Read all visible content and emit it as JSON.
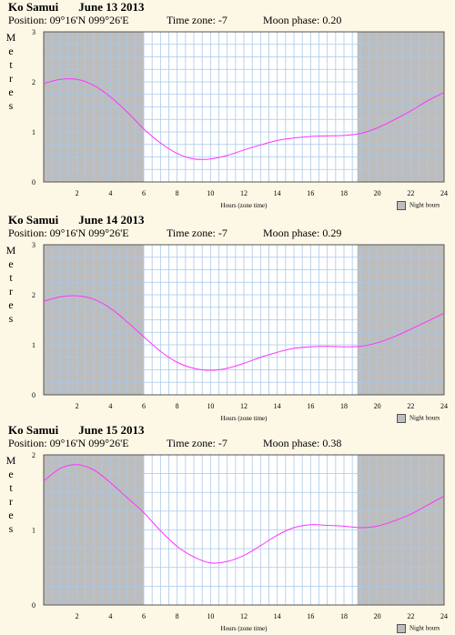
{
  "panels": [
    {
      "location": "Ko Samui",
      "date": "June 13 2013",
      "position": "Position: 09°16'N 099°26'E",
      "timezone": "Time zone: -7",
      "moon_phase": "Moon phase: 0.20",
      "ylabel_letters": [
        "M",
        "e",
        "t",
        "r",
        "e",
        "s"
      ],
      "xlabel": "Hours (zone time)",
      "legend": "Night hours"
    },
    {
      "location": "Ko Samui",
      "date": "June 14 2013",
      "position": "Position: 09°16'N 099°26'E",
      "timezone": "Time zone: -7",
      "moon_phase": "Moon phase: 0.29",
      "ylabel_letters": [
        "M",
        "e",
        "t",
        "r",
        "e",
        "s"
      ],
      "xlabel": "Hours (zone time)",
      "legend": "Night hours"
    },
    {
      "location": "Ko Samui",
      "date": "June 15 2013",
      "position": "Position: 09°16'N 099°26'E",
      "timezone": "Time zone: -7",
      "moon_phase": "Moon phase: 0.38",
      "ylabel_letters": [
        "M",
        "e",
        "t",
        "r",
        "e",
        "s"
      ],
      "xlabel": "Hours (zone time)",
      "legend": "Night hours"
    }
  ],
  "chart_data": [
    {
      "type": "line",
      "title": "Ko Samui June 13 2013",
      "xlabel": "Hours (zone time)",
      "ylabel": "Metres",
      "xlim": [
        0,
        24
      ],
      "ylim": [
        0,
        3
      ],
      "xticks": [
        2,
        4,
        6,
        8,
        10,
        12,
        14,
        16,
        18,
        20,
        22,
        24
      ],
      "yticks": [
        0,
        1,
        2,
        3
      ],
      "night_shading": [
        [
          0,
          6.0
        ],
        [
          18.8,
          24
        ]
      ],
      "series": [
        {
          "color": "#ff33ff",
          "x": [
            0,
            1,
            2,
            3,
            4,
            5,
            6,
            7,
            8,
            9,
            10,
            11,
            12,
            13,
            14,
            15,
            16,
            17,
            18,
            19,
            20,
            21,
            22,
            23,
            24
          ],
          "y": [
            1.97,
            2.05,
            2.05,
            1.93,
            1.7,
            1.4,
            1.06,
            0.78,
            0.57,
            0.46,
            0.46,
            0.53,
            0.64,
            0.74,
            0.83,
            0.88,
            0.91,
            0.92,
            0.93,
            0.97,
            1.08,
            1.24,
            1.42,
            1.62,
            1.79
          ]
        }
      ]
    },
    {
      "type": "line",
      "title": "Ko Samui June 14 2013",
      "xlabel": "Hours (zone time)",
      "ylabel": "Metres",
      "xlim": [
        0,
        24
      ],
      "ylim": [
        0,
        3
      ],
      "xticks": [
        2,
        4,
        6,
        8,
        10,
        12,
        14,
        16,
        18,
        20,
        22,
        24
      ],
      "yticks": [
        0,
        1,
        2,
        3
      ],
      "night_shading": [
        [
          0,
          6.0
        ],
        [
          18.8,
          24
        ]
      ],
      "series": [
        {
          "color": "#ff33ff",
          "x": [
            0,
            1,
            2,
            3,
            4,
            5,
            6,
            7,
            8,
            9,
            10,
            11,
            12,
            13,
            14,
            15,
            16,
            17,
            18,
            19,
            20,
            21,
            22,
            23,
            24
          ],
          "y": [
            1.87,
            1.96,
            1.98,
            1.91,
            1.73,
            1.46,
            1.16,
            0.87,
            0.65,
            0.53,
            0.49,
            0.53,
            0.63,
            0.75,
            0.85,
            0.93,
            0.96,
            0.97,
            0.96,
            0.97,
            1.04,
            1.16,
            1.31,
            1.47,
            1.63
          ]
        }
      ]
    },
    {
      "type": "line",
      "title": "Ko Samui June 15 2013",
      "xlabel": "Hours (zone time)",
      "ylabel": "Metres",
      "xlim": [
        0,
        24
      ],
      "ylim": [
        0,
        2
      ],
      "xticks": [
        2,
        4,
        6,
        8,
        10,
        12,
        14,
        16,
        18,
        20,
        22,
        24
      ],
      "yticks": [
        0,
        1,
        2
      ],
      "night_shading": [
        [
          0,
          6.0
        ],
        [
          18.8,
          24
        ]
      ],
      "series": [
        {
          "color": "#ff33ff",
          "x": [
            0,
            1,
            2,
            3,
            4,
            5,
            6,
            7,
            8,
            9,
            10,
            11,
            12,
            13,
            14,
            15,
            16,
            17,
            18,
            19,
            20,
            21,
            22,
            23,
            24
          ],
          "y": [
            1.65,
            1.82,
            1.87,
            1.8,
            1.63,
            1.43,
            1.23,
            0.99,
            0.78,
            0.64,
            0.56,
            0.58,
            0.66,
            0.79,
            0.93,
            1.03,
            1.07,
            1.06,
            1.05,
            1.03,
            1.05,
            1.12,
            1.21,
            1.33,
            1.45
          ]
        }
      ]
    }
  ]
}
